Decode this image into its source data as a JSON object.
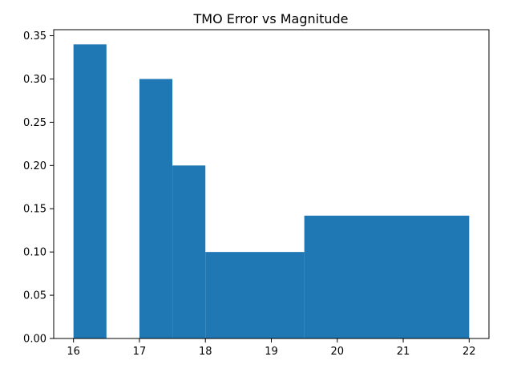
{
  "chart_data": {
    "type": "bar",
    "title": "TMO Error vs Magnitude",
    "xlabel": "",
    "ylabel": "",
    "xlim": [
      15.7,
      22.3
    ],
    "ylim": [
      0,
      0.357
    ],
    "grid": false,
    "bar_color": "#1f77b4",
    "bins": [
      {
        "x0": 16.0,
        "x1": 16.5,
        "value": 0.34
      },
      {
        "x0": 16.5,
        "x1": 17.0,
        "value": 0.0
      },
      {
        "x0": 17.0,
        "x1": 17.5,
        "value": 0.3
      },
      {
        "x0": 17.5,
        "x1": 18.0,
        "value": 0.2
      },
      {
        "x0": 18.0,
        "x1": 19.5,
        "value": 0.1
      },
      {
        "x0": 19.5,
        "x1": 22.0,
        "value": 0.142
      }
    ],
    "x_ticks": [
      {
        "value": 16,
        "label": "16"
      },
      {
        "value": 17,
        "label": "17"
      },
      {
        "value": 18,
        "label": "18"
      },
      {
        "value": 19,
        "label": "19"
      },
      {
        "value": 20,
        "label": "20"
      },
      {
        "value": 21,
        "label": "21"
      },
      {
        "value": 22,
        "label": "22"
      }
    ],
    "y_ticks": [
      {
        "value": 0.0,
        "label": "0.00"
      },
      {
        "value": 0.05,
        "label": "0.05"
      },
      {
        "value": 0.1,
        "label": "0.10"
      },
      {
        "value": 0.15,
        "label": "0.15"
      },
      {
        "value": 0.2,
        "label": "0.20"
      },
      {
        "value": 0.25,
        "label": "0.25"
      },
      {
        "value": 0.3,
        "label": "0.30"
      },
      {
        "value": 0.35,
        "label": "0.35"
      }
    ]
  }
}
